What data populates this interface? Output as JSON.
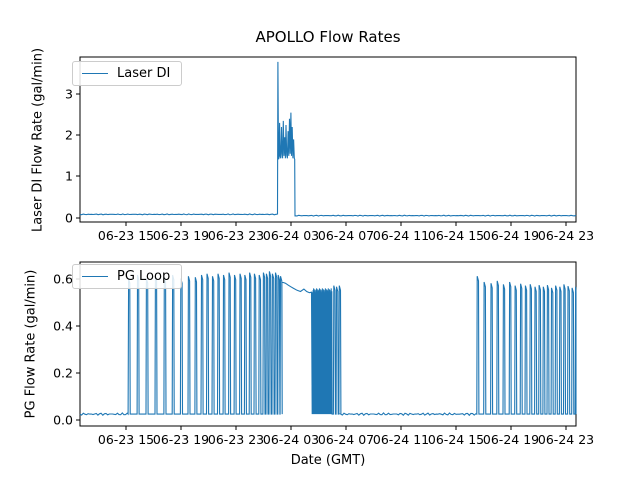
{
  "title": "APOLLO Flow Rates",
  "xlabel": "Date (GMT)",
  "accent_color": "#1f77b4",
  "chart_data": [
    {
      "type": "line",
      "ylabel": "Laser DI Flow Rate (gal/min)",
      "legend": "Laser DI",
      "legend_position": "upper left",
      "grid": false,
      "line_color": "#1f77b4",
      "xlim_hours_from_0623_0000": [
        11.67,
        47.73
      ],
      "ylim": [
        -0.105,
        3.9
      ],
      "y_ticks": [
        0,
        1,
        2,
        3
      ],
      "y_tick_labels": [
        "0",
        "1",
        "2",
        "3"
      ],
      "x_ticks_hours": [
        15,
        19,
        23,
        27,
        31,
        35,
        39,
        43,
        47
      ],
      "x_tick_labels": [
        "06-23 15",
        "06-23 19",
        "06-23 23",
        "06-24 03",
        "06-24 07",
        "06-24 11",
        "06-24 15",
        "06-24 19",
        "06-24 23"
      ],
      "segments": [
        {
          "type": "flat",
          "from": 11.67,
          "to": 26.03,
          "v": 0.08,
          "noise": 0.01
        },
        {
          "type": "path",
          "points": [
            [
              26.03,
              0.08
            ],
            [
              26.06,
              3.78
            ],
            [
              26.1,
              1.42
            ],
            [
              26.14,
              1.45
            ],
            [
              26.18,
              2.3
            ],
            [
              26.22,
              1.5
            ],
            [
              26.27,
              1.44
            ],
            [
              26.32,
              2.2
            ],
            [
              26.36,
              1.55
            ],
            [
              26.4,
              1.44
            ],
            [
              26.45,
              2.35
            ],
            [
              26.5,
              1.5
            ],
            [
              26.55,
              1.95
            ],
            [
              26.6,
              1.44
            ],
            [
              26.65,
              2.25
            ],
            [
              26.7,
              1.52
            ],
            [
              26.75,
              1.44
            ],
            [
              26.8,
              2.1
            ],
            [
              26.85,
              1.5
            ],
            [
              26.9,
              2.4
            ],
            [
              26.95,
              1.55
            ],
            [
              27.0,
              2.55
            ],
            [
              27.05,
              1.5
            ],
            [
              27.1,
              2.2
            ],
            [
              27.15,
              1.44
            ],
            [
              27.2,
              1.9
            ],
            [
              27.25,
              1.44
            ],
            [
              27.28,
              1.42
            ],
            [
              27.3,
              0.03
            ]
          ]
        },
        {
          "type": "flat",
          "from": 27.32,
          "to": 47.73,
          "v": 0.05,
          "noise": 0.01
        }
      ]
    },
    {
      "type": "line",
      "ylabel": "PG Flow Rate (gal/min)",
      "legend": "PG Loop",
      "legend_position": "upper left",
      "grid": false,
      "line_color": "#1f77b4",
      "xlim_hours_from_0623_0000": [
        11.67,
        47.73
      ],
      "ylim": [
        -0.0254,
        0.67
      ],
      "y_ticks": [
        0.0,
        0.2,
        0.4,
        0.6
      ],
      "y_tick_labels": [
        "0.0",
        "0.2",
        "0.4",
        "0.6"
      ],
      "x_ticks_hours": [
        15,
        19,
        23,
        27,
        31,
        35,
        39,
        43,
        47
      ],
      "x_tick_labels": [
        "06-23 15",
        "06-23 19",
        "06-23 23",
        "06-24 03",
        "06-24 07",
        "06-24 11",
        "06-24 15",
        "06-24 19",
        "06-24 23"
      ],
      "segments": [
        {
          "type": "flat",
          "from": 11.67,
          "to": 15.1,
          "v": 0.025,
          "noise": 0.005
        },
        {
          "type": "spikes",
          "baseline": 0.025,
          "spikes": [
            [
              15.2,
              0.6
            ],
            [
              15.85,
              0.615
            ],
            [
              16.5,
              0.6
            ],
            [
              17.15,
              0.61
            ],
            [
              17.8,
              0.605
            ],
            [
              18.4,
              0.615
            ],
            [
              19.0,
              0.6
            ],
            [
              19.55,
              0.61
            ],
            [
              20.05,
              0.605
            ],
            [
              20.5,
              0.615
            ],
            [
              20.9,
              0.62
            ],
            [
              21.3,
              0.61
            ],
            [
              21.7,
              0.62
            ],
            [
              22.1,
              0.615
            ],
            [
              22.5,
              0.625
            ],
            [
              22.9,
              0.615
            ],
            [
              23.3,
              0.62
            ],
            [
              23.65,
              0.615
            ],
            [
              24.0,
              0.625
            ],
            [
              24.35,
              0.62
            ],
            [
              24.7,
              0.615
            ],
            [
              25.0,
              0.625
            ],
            [
              25.22,
              0.62
            ],
            [
              25.44,
              0.63
            ],
            [
              25.66,
              0.62
            ],
            [
              25.88,
              0.625
            ],
            [
              26.08,
              0.615
            ],
            [
              26.25,
              0.61
            ]
          ]
        },
        {
          "type": "path",
          "points": [
            [
              26.35,
              0.585
            ],
            [
              26.6,
              0.58
            ],
            [
              26.8,
              0.572
            ],
            [
              27.0,
              0.565
            ],
            [
              27.2,
              0.558
            ],
            [
              27.45,
              0.55
            ],
            [
              27.7,
              0.545
            ],
            [
              27.95,
              0.555
            ],
            [
              28.15,
              0.545
            ],
            [
              28.35,
              0.54
            ],
            [
              28.5,
              0.542
            ]
          ]
        },
        {
          "type": "osc",
          "from": 28.55,
          "to": 30.0,
          "lo": 0.025,
          "hi": 0.55,
          "n": 34
        },
        {
          "type": "spikes",
          "baseline": 0.025,
          "spikes": [
            [
              30.12,
              0.57
            ],
            [
              30.32,
              0.565
            ],
            [
              30.52,
              0.57
            ]
          ]
        },
        {
          "type": "flat",
          "from": 30.62,
          "to": 40.45,
          "v": 0.025,
          "noise": 0.005
        },
        {
          "type": "spikes",
          "baseline": 0.025,
          "spikes": [
            [
              40.55,
              0.61
            ],
            [
              41.05,
              0.585
            ],
            [
              41.55,
              0.58
            ],
            [
              42.0,
              0.59
            ],
            [
              42.45,
              0.575
            ],
            [
              42.9,
              0.585
            ],
            [
              43.3,
              0.57
            ],
            [
              43.7,
              0.578
            ],
            [
              44.05,
              0.57
            ],
            [
              44.4,
              0.576
            ],
            [
              44.75,
              0.565
            ],
            [
              45.05,
              0.572
            ],
            [
              45.35,
              0.565
            ],
            [
              45.65,
              0.572
            ],
            [
              45.95,
              0.56
            ],
            [
              46.25,
              0.57
            ],
            [
              46.55,
              0.565
            ],
            [
              46.85,
              0.575
            ],
            [
              47.15,
              0.568
            ],
            [
              47.45,
              0.56
            ],
            [
              47.7,
              0.565
            ]
          ]
        }
      ]
    }
  ]
}
